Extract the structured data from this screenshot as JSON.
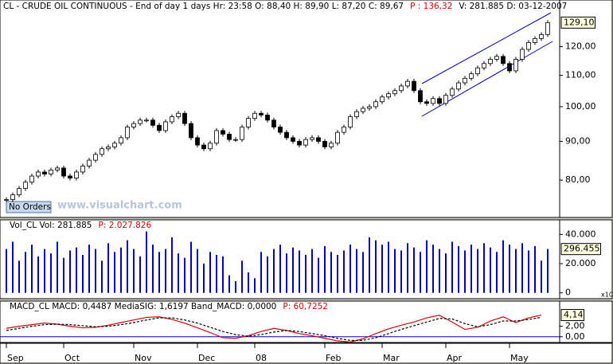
{
  "chart_data": [
    {
      "type": "candlestick",
      "title": "CL - CRUDE OIL CONTINUOUS - End of day 1 days Hr: 23:58  O: 88,40  H: 89,90  L: 87,20  C: 89,67",
      "info_red": "P : 136,32",
      "info_right": "V: 281.885  D: 03-12-2007",
      "badge": "No Orders",
      "watermark": "www.visualchart.com",
      "log_scale": true,
      "up_color": "#ffffff",
      "down_color": "#000000",
      "ylim": [
        71.6,
        137.6
      ],
      "yticks": [
        {
          "value": 80,
          "label": "80,00"
        },
        {
          "value": 90,
          "label": "90,00"
        },
        {
          "value": 100,
          "label": "100,00"
        },
        {
          "value": 110,
          "label": "110,00"
        },
        {
          "value": 120,
          "label": "120,00"
        }
      ],
      "categories": [
        "Sep",
        null,
        null,
        null,
        null,
        null,
        null,
        null,
        null,
        "Oct",
        null,
        null,
        null,
        null,
        null,
        null,
        null,
        null,
        null,
        null,
        "Nov",
        null,
        null,
        null,
        null,
        null,
        null,
        null,
        null,
        null,
        "Dec",
        null,
        null,
        null,
        null,
        null,
        null,
        null,
        null,
        "08",
        null,
        null,
        null,
        null,
        null,
        null,
        null,
        null,
        null,
        null,
        "Feb",
        null,
        null,
        null,
        null,
        null,
        null,
        null,
        null,
        "Mar",
        null,
        null,
        null,
        null,
        null,
        null,
        null,
        null,
        null,
        "Apr",
        null,
        null,
        null,
        null,
        null,
        null,
        null,
        null,
        null,
        "May",
        null,
        null,
        null,
        null,
        null,
        null
      ],
      "values": [
        75.4,
        76.5,
        78.0,
        79.5,
        81.0,
        82.0,
        81.5,
        82.5,
        83.0,
        81.0,
        80.5,
        82.0,
        83.5,
        85.0,
        86.5,
        88.0,
        88.5,
        89.5,
        91.0,
        94.0,
        95.0,
        96.0,
        96.0,
        94.5,
        93.0,
        95.5,
        97.0,
        98.0,
        95.0,
        91.0,
        89.0,
        88.0,
        89.5,
        93.0,
        92.0,
        90.5,
        90.5,
        94.0,
        96.5,
        98.0,
        97.5,
        96.0,
        94.0,
        92.5,
        91.0,
        90.0,
        89.0,
        90.5,
        91.0,
        90.0,
        88.5,
        89.5,
        92.5,
        94.0,
        97.0,
        98.5,
        99.5,
        100.0,
        101.5,
        103.0,
        104.0,
        105.0,
        106.5,
        108.0,
        105.0,
        101.5,
        101.0,
        102.5,
        101.0,
        103.5,
        105.5,
        107.5,
        109.0,
        110.5,
        112.5,
        114.0,
        115.5,
        116.5,
        114.0,
        111.5,
        115.5,
        119.0,
        121.5,
        123.0,
        124.5,
        129.1
      ],
      "last_label": "129,10"
    },
    {
      "type": "bar",
      "title": "Vol_CL  Vol: 281.885",
      "info_red": "P: 2.027.826",
      "multiplier": "x10",
      "last_label": "296.455",
      "color": "#0000c0",
      "ylim": [
        -4000,
        50000
      ],
      "yticks": [
        {
          "value": 0,
          "label": "0"
        },
        {
          "value": 20000,
          "label": "20.000"
        },
        {
          "value": 40000,
          "label": "40.000"
        }
      ],
      "values": [
        30000,
        35000,
        22000,
        28000,
        33000,
        25000,
        30000,
        27000,
        35000,
        24000,
        29000,
        31000,
        26000,
        33000,
        30000,
        22000,
        34000,
        28000,
        31000,
        36000,
        30000,
        25000,
        42000,
        33000,
        28000,
        30000,
        38000,
        27000,
        24000,
        35000,
        30000,
        20000,
        28000,
        26000,
        25000,
        12000,
        8000,
        22000,
        14000,
        10000,
        28000,
        25000,
        30000,
        33000,
        27000,
        31000,
        29000,
        26000,
        30000,
        24000,
        32000,
        28000,
        26000,
        29000,
        33000,
        30000,
        28000,
        38000,
        36000,
        33000,
        35000,
        30000,
        29000,
        34000,
        31000,
        28000,
        36000,
        33000,
        30000,
        27000,
        35000,
        32000,
        29000,
        33000,
        30000,
        34000,
        31000,
        28000,
        36000,
        33000,
        30000,
        34000,
        29000,
        32000,
        22000,
        30000
      ]
    },
    {
      "type": "line",
      "title": "MACD_CL  MACD: 0,4487  MediaSIG: 1,6197  Band_MACD: 0,0000",
      "info_red": "P: 60,7252",
      "zero_color": "#0000c0",
      "ylim": [
        -1.1,
        6.5
      ],
      "yticks": [
        {
          "value": 0,
          "label": "0,00"
        },
        {
          "value": 2,
          "label": "2,00"
        }
      ],
      "series": [
        {
          "name": "MACD",
          "color": "#e00000",
          "values": [
            1.6,
            2.0,
            2.3,
            2.6,
            2.4,
            2.0,
            1.7,
            1.8,
            2.2,
            2.7,
            3.2,
            3.7,
            3.8,
            3.3,
            2.6,
            1.7,
            0.8,
            -0.2,
            -0.3,
            0.2,
            1.0,
            1.6,
            1.2,
            0.6,
            0.2,
            -0.3,
            -0.8,
            -1.0,
            -0.4,
            0.6,
            1.5,
            2.2,
            2.8,
            3.6,
            4.1,
            2.8,
            1.4,
            1.8,
            3.0,
            3.8,
            2.7,
            3.6,
            4.14
          ],
          "value_labels": {
            "42": "4,14"
          }
        },
        {
          "name": "MediaSIG",
          "color": "#000000",
          "dashed": true,
          "values": [
            1.2,
            1.6,
            2.0,
            2.3,
            2.4,
            2.3,
            2.1,
            1.9,
            2.0,
            2.3,
            2.7,
            3.2,
            3.6,
            3.6,
            3.2,
            2.6,
            1.8,
            1.0,
            0.4,
            0.1,
            0.4,
            0.9,
            1.2,
            1.0,
            0.6,
            0.2,
            -0.3,
            -0.7,
            -0.7,
            -0.2,
            0.6,
            1.4,
            2.1,
            2.8,
            3.5,
            3.4,
            2.5,
            1.9,
            2.3,
            3.0,
            3.0,
            3.3,
            3.7
          ]
        }
      ]
    }
  ]
}
